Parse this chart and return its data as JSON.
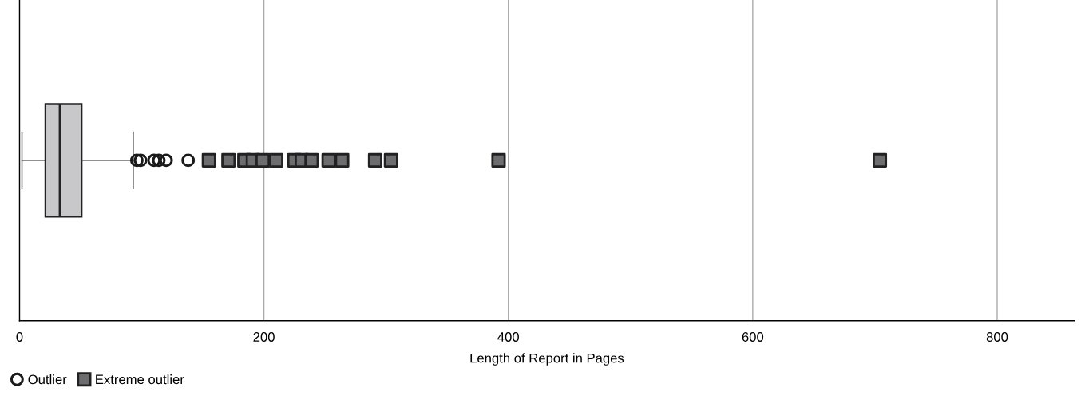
{
  "chart_data": {
    "type": "box",
    "orientation": "horizontal",
    "xlabel": "Length of Report in Pages",
    "categories": [
      null
    ],
    "xlim": [
      0,
      863
    ],
    "xticks": [
      0,
      200,
      400,
      600,
      800
    ],
    "grid": "x",
    "legend": "bottom left",
    "boxes": [
      {
        "low": 2,
        "q1": 21,
        "median": 33,
        "q3": 51,
        "high": 93
      }
    ],
    "color": "#c8c8ca",
    "series": [
      {
        "type": "scatter",
        "name": "Outlier",
        "marker": "circle",
        "color": "#1a1a1a",
        "x": [
          null,
          null,
          null,
          null,
          null,
          null
        ],
        "values": [
          96,
          99,
          110,
          114,
          120,
          138
        ]
      },
      {
        "type": "scatter",
        "name": "Extreme outlier",
        "marker": "square",
        "color": "#6d6d70",
        "x": [
          null,
          null,
          null,
          null,
          null,
          null,
          null,
          null,
          null,
          null,
          null,
          null,
          null,
          null,
          null
        ],
        "values": [
          155,
          171,
          184,
          191,
          199,
          210,
          225,
          231,
          239,
          253,
          264,
          291,
          304,
          392,
          704
        ]
      }
    ]
  }
}
